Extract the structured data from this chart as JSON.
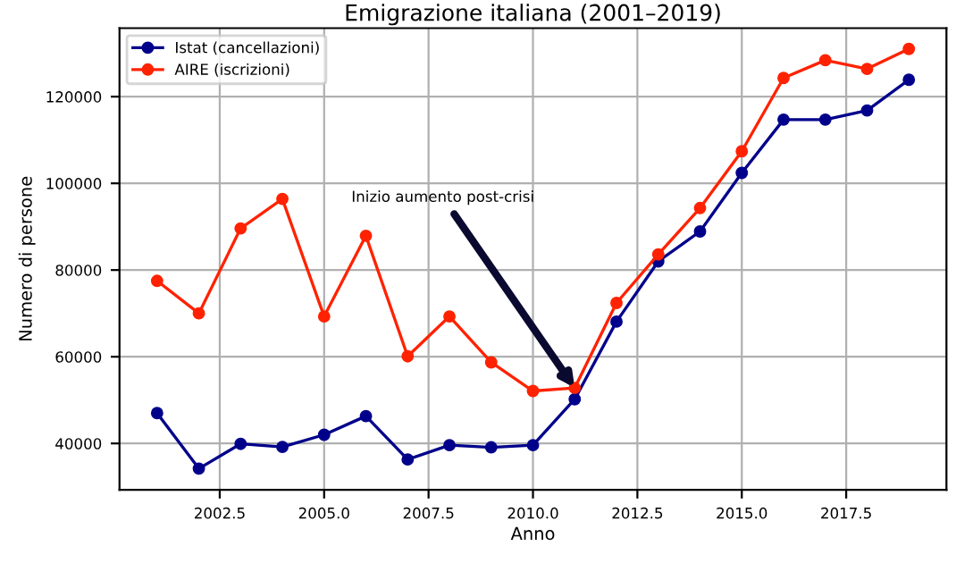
{
  "chart_data": {
    "type": "line",
    "title": "Emigrazione italiana (2001–2019)",
    "xlabel": "Anno",
    "ylabel": "Numero di persone",
    "x": [
      2001,
      2002,
      2003,
      2004,
      2005,
      2006,
      2007,
      2008,
      2009,
      2010,
      2011,
      2012,
      2013,
      2014,
      2015,
      2016,
      2017,
      2018,
      2019
    ],
    "series": [
      {
        "name": "Istat (cancellazioni)",
        "color": "#00008b",
        "values": [
          47000,
          34200,
          39900,
          39200,
          42000,
          46300,
          36300,
          39600,
          39100,
          39600,
          50200,
          68100,
          82000,
          88900,
          102400,
          114700,
          114700,
          116800,
          123900
        ]
      },
      {
        "name": "AIRE (iscrizioni)",
        "color": "#ff2200",
        "values": [
          77500,
          70000,
          89600,
          96400,
          69300,
          87900,
          60100,
          69300,
          58700,
          52100,
          52800,
          72400,
          83600,
          94300,
          107400,
          124300,
          128400,
          126400,
          131000
        ]
      }
    ],
    "xlim": [
      2000.1,
      2019.9
    ],
    "xticks": [
      {
        "value": 2002.5,
        "label": "2002.5"
      },
      {
        "value": 2005,
        "label": "2005.0"
      },
      {
        "value": 2007.5,
        "label": "2007.5"
      },
      {
        "value": 2010,
        "label": "2010.0"
      },
      {
        "value": 2012.5,
        "label": "2012.5"
      },
      {
        "value": 2015,
        "label": "2015.0"
      },
      {
        "value": 2017.5,
        "label": "2017.5"
      }
    ],
    "ylim": [
      29300,
      135800
    ],
    "yticks": [
      40000,
      60000,
      80000,
      100000,
      120000
    ],
    "annotations": [
      {
        "text": "Inizio aumento post-crisi",
        "x": 2011,
        "y": 52800
      }
    ],
    "grid": true,
    "legend": "top left",
    "marker": "circle",
    "line_style": "solid"
  }
}
